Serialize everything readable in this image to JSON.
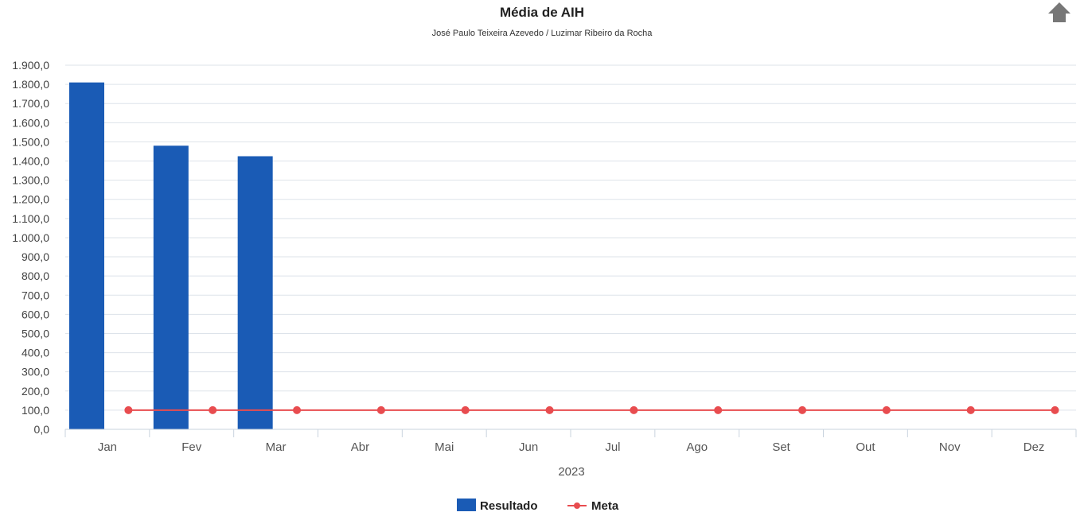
{
  "chart_data": {
    "type": "bar",
    "title": "Média de AIH",
    "subtitle": "José Paulo Teixeira Azevedo / Luzimar Ribeiro da Rocha",
    "categories": [
      "Jan",
      "Fev",
      "Mar",
      "Abr",
      "Mai",
      "Jun",
      "Jul",
      "Ago",
      "Set",
      "Out",
      "Nov",
      "Dez"
    ],
    "xlabel": "2023",
    "ylabel": "",
    "ylim": [
      0,
      1900
    ],
    "ytick_step": 100,
    "ytick_labels": [
      "0,0",
      "100,0",
      "200,0",
      "300,0",
      "400,0",
      "500,0",
      "600,0",
      "700,0",
      "800,0",
      "900,0",
      "1.000,0",
      "1.100,0",
      "1.200,0",
      "1.300,0",
      "1.400,0",
      "1.500,0",
      "1.600,0",
      "1.700,0",
      "1.800,0",
      "1.900,0"
    ],
    "grid": true,
    "legend_position": "bottom-center",
    "series": [
      {
        "name": "Resultado",
        "type": "bar",
        "color": "#1a5bb5",
        "values": [
          1810,
          1480,
          1425,
          null,
          null,
          null,
          null,
          null,
          null,
          null,
          null,
          null
        ]
      },
      {
        "name": "Meta",
        "type": "line",
        "color": "#e84c4f",
        "values": [
          100,
          100,
          100,
          100,
          100,
          100,
          100,
          100,
          100,
          100,
          100,
          100
        ]
      }
    ]
  },
  "toolbar": {
    "export_icon": "upload-arrow-icon",
    "export_color": "#777777"
  }
}
